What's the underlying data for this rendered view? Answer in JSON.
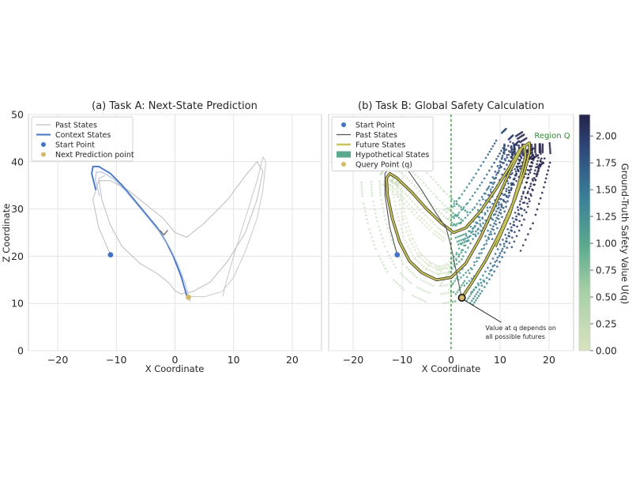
{
  "chart_data": [
    {
      "type": "line",
      "title": "(a) Task A: Next-State Prediction",
      "xlabel": "X Coordinate",
      "ylabel": "Z Coordinate",
      "xlim": [
        -25,
        25
      ],
      "ylim": [
        0,
        50
      ],
      "xticks": [
        -20,
        -10,
        0,
        10,
        20
      ],
      "yticks": [
        0,
        10,
        20,
        30,
        40,
        50
      ],
      "grid": true,
      "legend_position": "top-left",
      "legend": [
        "Past States",
        "Context States",
        "Start Point",
        "Next Prediction point"
      ],
      "series": [
        {
          "name": "Past States",
          "color": "#bdbdbd",
          "x": [
            -11,
            -13,
            -14,
            -13,
            -11,
            -8,
            -5,
            -2,
            0,
            2,
            5,
            9,
            12,
            14,
            15,
            14,
            12,
            9,
            6,
            3,
            1,
            0,
            -1,
            -3,
            -6,
            -9,
            -11,
            -12.5,
            -13,
            -12
          ],
          "y": [
            20.3,
            26,
            32,
            36,
            36,
            34,
            31,
            28,
            25,
            24,
            27,
            32,
            37,
            40,
            38,
            32,
            25,
            19,
            14.5,
            12.5,
            12,
            12.7,
            14.3,
            16.3,
            18.5,
            22,
            26.5,
            32,
            36.5,
            37
          ]
        },
        {
          "name": "Past States",
          "color": "#c8c8c8",
          "x": [
            2.5,
            5,
            8,
            10,
            12,
            14,
            15,
            15.5,
            15,
            14,
            12,
            10,
            8.5,
            8.2
          ],
          "y": [
            11.5,
            11.4,
            12.5,
            15.5,
            21,
            28,
            34,
            40,
            41,
            36,
            28,
            20,
            13.5,
            11.5
          ]
        },
        {
          "name": "Context States",
          "color": "#4472c4",
          "x": [
            -13.5,
            -14.2,
            -14,
            -13,
            -11,
            -9,
            -7,
            -5,
            -3,
            -1.5,
            -0.3,
            0.5,
            1.1,
            1.5,
            1.8,
            2.0
          ],
          "y": [
            34,
            37.5,
            39,
            39,
            37.5,
            35,
            32,
            29,
            26,
            23,
            20,
            17.5,
            15.5,
            13.8,
            12.5,
            11.6
          ]
        }
      ],
      "points": [
        {
          "name": "Start Point",
          "x": -11,
          "y": 20.3,
          "color": "#4472c4"
        },
        {
          "name": "Next Prediction point",
          "x": 2.3,
          "y": 11.3,
          "color": "#d4b96a"
        }
      ]
    },
    {
      "type": "scatter",
      "title": "(b) Task B: Global Safety Calculation",
      "xlabel": "X Coordinate",
      "xlim": [
        -25,
        25
      ],
      "ylim": [
        0,
        50
      ],
      "xticks": [
        -20,
        -10,
        0,
        10,
        20
      ],
      "yticks": [
        0,
        10,
        20,
        30,
        40,
        50
      ],
      "grid": true,
      "legend_position": "top-left",
      "legend": [
        "Start Point",
        "Past States",
        "Future States",
        "Hypothetical States",
        "Query Point (q)"
      ],
      "vline_x": 0,
      "region_label": "Region Q",
      "annotation": {
        "lines": [
          "Value at q depends on",
          "all possible futures"
        ],
        "target": {
          "x": 2.2,
          "y": 11.2
        },
        "text_at": {
          "x": 7,
          "y": 5
        }
      },
      "series": [
        {
          "name": "Past States",
          "color": "#555555",
          "x": [
            -11,
            -12.5,
            -13.5,
            -13.5,
            -12,
            -9,
            -6,
            -3,
            -1,
            0,
            0.8,
            1.5,
            2.0
          ],
          "y": [
            20.3,
            26,
            33,
            37.5,
            40,
            38.5,
            34,
            29,
            26,
            22,
            18,
            14.5,
            12
          ]
        },
        {
          "name": "Future States",
          "color": "#c9c45a",
          "x": [
            2.2,
            4,
            7,
            10,
            13,
            15,
            16,
            16,
            14.5,
            12,
            9,
            6,
            3,
            0,
            -3,
            -6,
            -8.5,
            -10.5,
            -12,
            -13,
            -13.2,
            -12.5,
            -11,
            -8,
            -5,
            -2,
            0.5,
            3,
            6,
            9,
            12,
            14,
            15,
            15.2,
            14,
            12,
            9
          ],
          "y": [
            11.2,
            14,
            19,
            25,
            32,
            38,
            42,
            44,
            43,
            38,
            31,
            24,
            18.5,
            15.5,
            15,
            16.5,
            19,
            23,
            28,
            33,
            36.5,
            37.5,
            36.5,
            33.5,
            30,
            27,
            25,
            26,
            29.5,
            34,
            39,
            42.5,
            43.5,
            41,
            36,
            29,
            22
          ]
        }
      ],
      "hypothetical_states": {
        "color_low": "#d9e3c0",
        "color_mid": "#5aa88e",
        "color_high": "#24224a",
        "value_range": [
          0,
          2.2
        ]
      },
      "points": [
        {
          "name": "Start Point",
          "x": -11,
          "y": 20.3,
          "color": "#4472c4"
        },
        {
          "name": "Query Point (q)",
          "x": 2.2,
          "y": 11.2,
          "color": "#d4b96a"
        }
      ],
      "colorbar": {
        "label": "Ground-Truth Safety Value U(q)",
        "min": 0,
        "max": 2.2,
        "ticks": [
          0.0,
          0.25,
          0.5,
          0.75,
          1.0,
          1.25,
          1.5,
          1.75,
          2.0
        ],
        "tick_labels": [
          "0.00",
          "0.25",
          "0.50",
          "0.75",
          "1.00",
          "1.25",
          "1.50",
          "1.75",
          "2.00"
        ]
      }
    }
  ]
}
